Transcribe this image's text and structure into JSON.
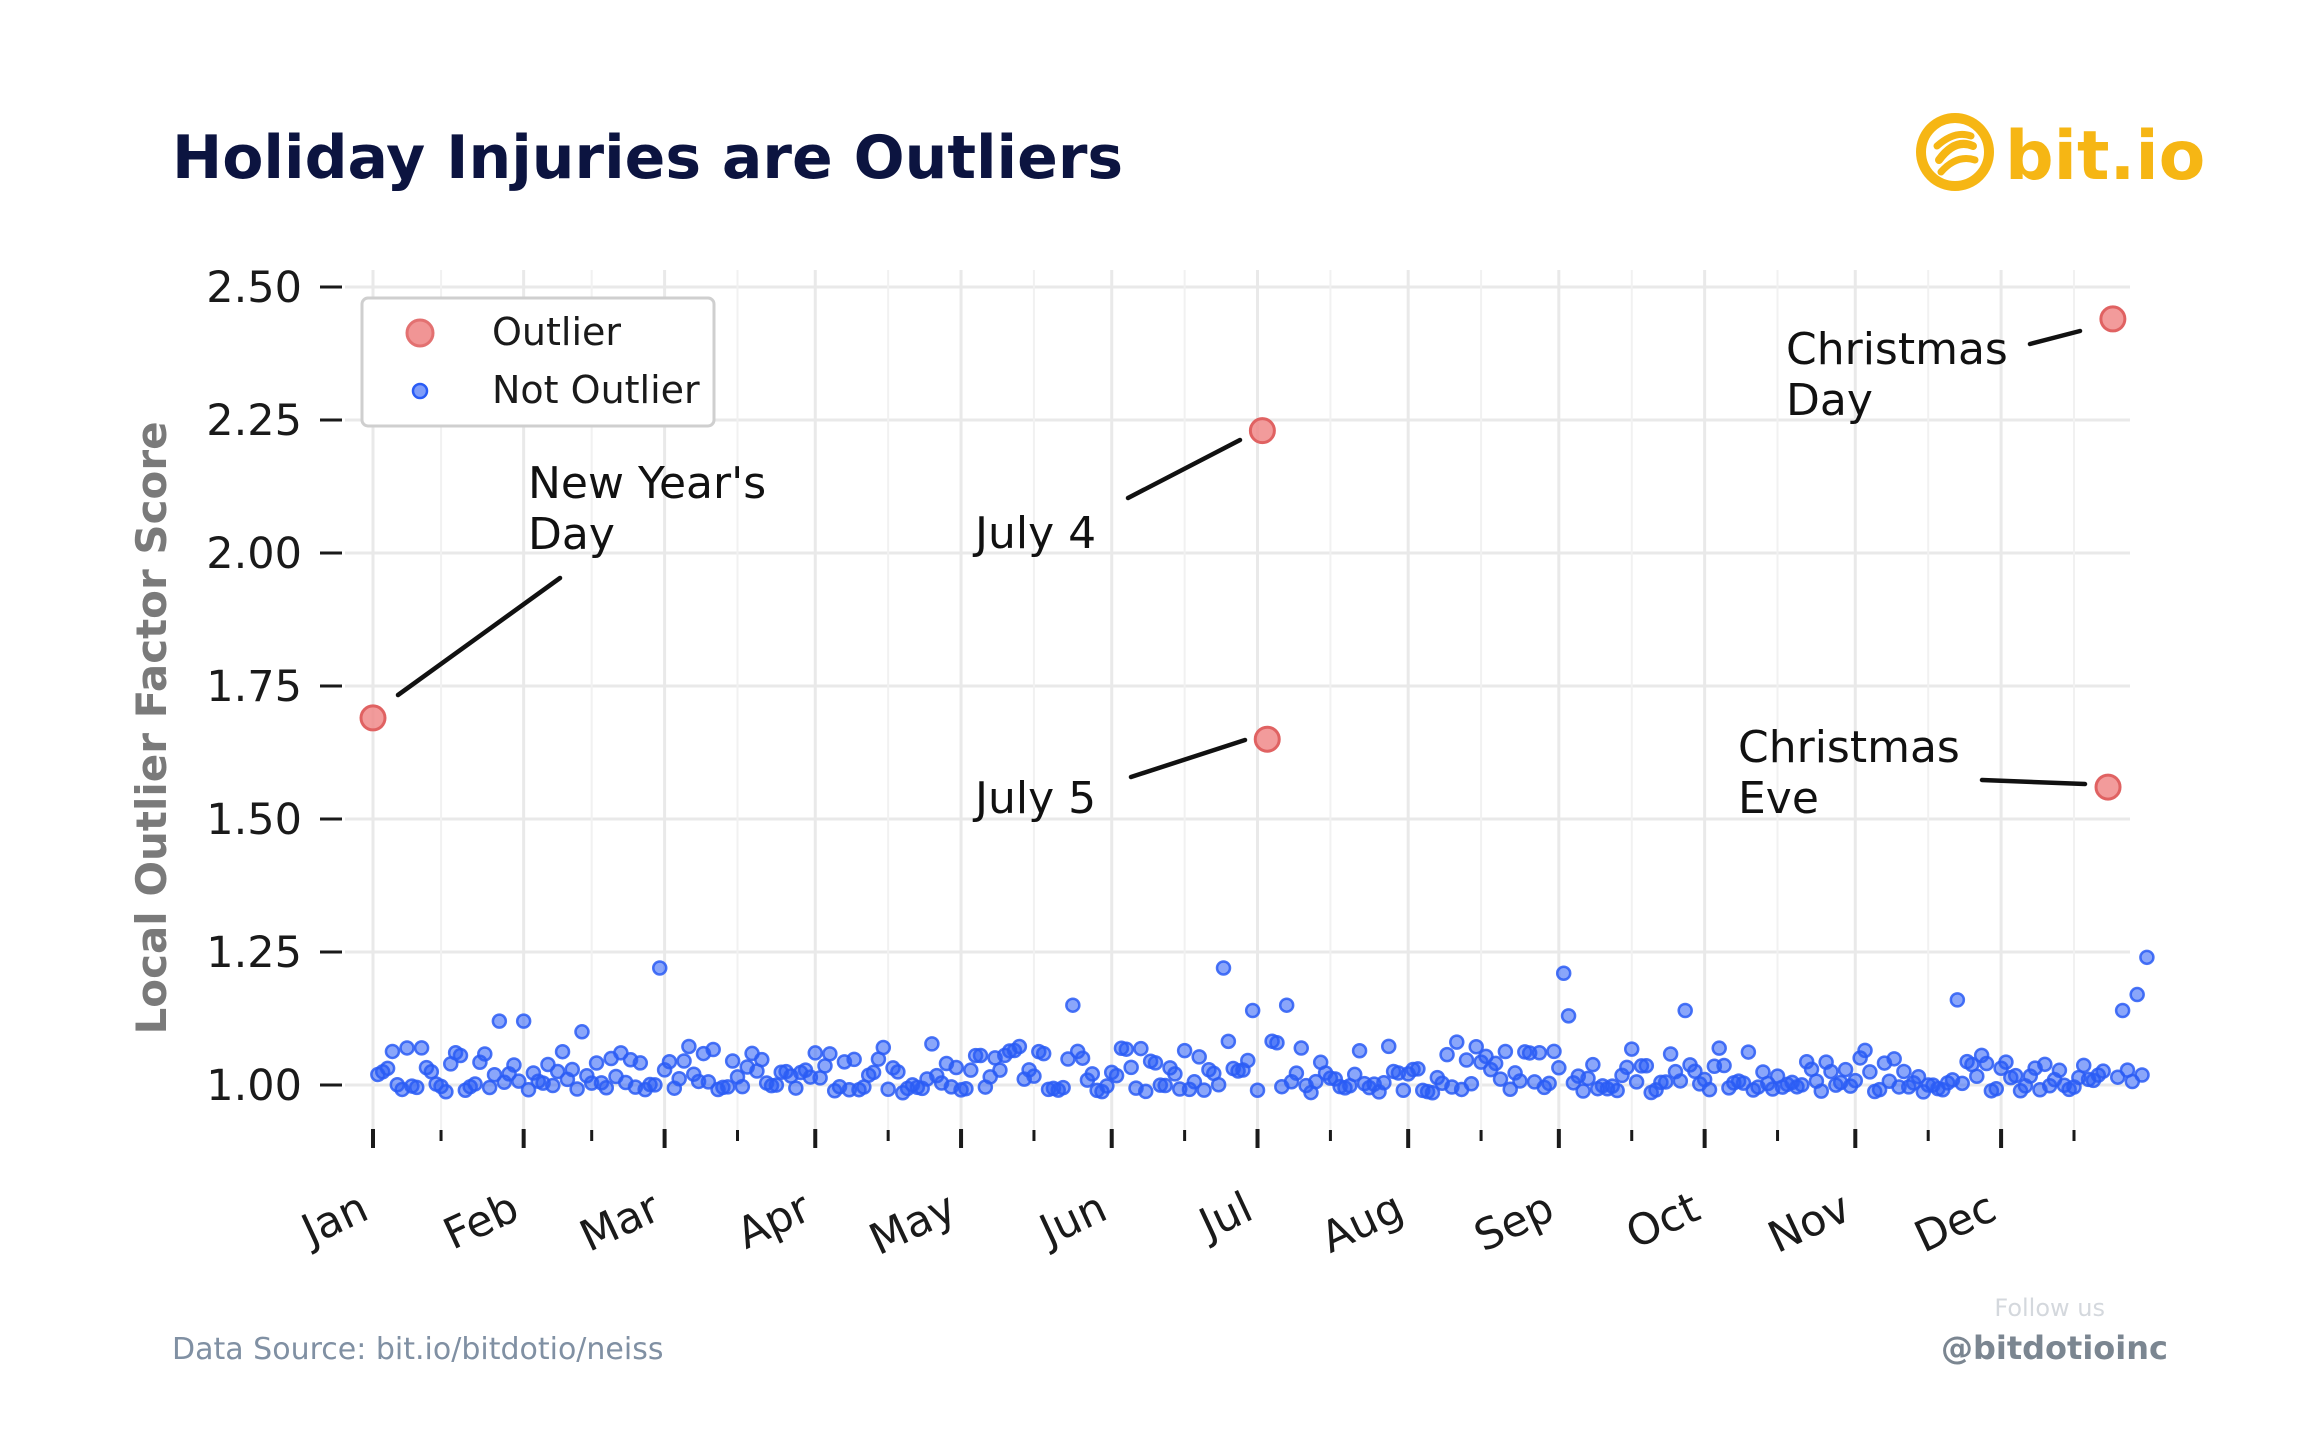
{
  "header": {
    "title": "Holiday Injuries are Outliers"
  },
  "brand": {
    "name": "bit.io",
    "logo_icon": "bitio-logo-icon",
    "color": "#f6b614"
  },
  "footer": {
    "source": "Data Source: bit.io/bitdotio/neiss",
    "follow": "Follow us",
    "handle": "@bitdotioinc"
  },
  "colors": {
    "outlier_fill": "#f08a8a",
    "outlier_edge": "#e06262",
    "inlier": "#2a5cf5",
    "grid": "#e9e9e9"
  },
  "chart_data": {
    "type": "scatter",
    "title": "Holiday Injuries are Outliers",
    "xlabel": "",
    "ylabel": "Local Outlier Factor Score",
    "ylim": [
      0.9,
      2.55
    ],
    "xlim": [
      0,
      366
    ],
    "y_ticks": [
      1.0,
      1.25,
      1.5,
      1.75,
      2.0,
      2.25,
      2.5
    ],
    "y_tick_labels": [
      "1.00",
      "1.25",
      "1.50",
      "1.75",
      "2.00",
      "2.25",
      "2.50"
    ],
    "months": [
      {
        "label": "Jan",
        "day": 1
      },
      {
        "label": "Feb",
        "day": 32
      },
      {
        "label": "Mar",
        "day": 61
      },
      {
        "label": "Apr",
        "day": 92
      },
      {
        "label": "May",
        "day": 122
      },
      {
        "label": "Jun",
        "day": 153
      },
      {
        "label": "Jul",
        "day": 183
      },
      {
        "label": "Aug",
        "day": 214
      },
      {
        "label": "Sep",
        "day": 245
      },
      {
        "label": "Oct",
        "day": 275
      },
      {
        "label": "Nov",
        "day": 306
      },
      {
        "label": "Dec",
        "day": 336
      }
    ],
    "minor_tick_days": [
      15,
      46,
      76,
      107,
      137,
      168,
      198,
      229,
      260,
      290,
      321,
      351
    ],
    "grid": true,
    "legend": {
      "position": "top-left",
      "entries": [
        "Outlier",
        "Not Outlier"
      ]
    },
    "series": [
      {
        "name": "Outlier",
        "points": [
          {
            "day": 1,
            "y": 1.69,
            "label": "New Year's Day"
          },
          {
            "day": 184,
            "y": 2.23,
            "label": "July 4"
          },
          {
            "day": 185,
            "y": 1.65,
            "label": "July 5"
          },
          {
            "day": 358,
            "y": 1.56,
            "label": "Christmas Eve"
          },
          {
            "day": 359,
            "y": 2.44,
            "label": "Christmas Day"
          }
        ]
      },
      {
        "name": "Not Outlier",
        "note": "about 360 daily scores, mostly between 0.98 and 1.10; notable highs listed",
        "highlights": [
          {
            "day": 27,
            "y": 1.12
          },
          {
            "day": 32,
            "y": 1.12
          },
          {
            "day": 44,
            "y": 1.1
          },
          {
            "day": 60,
            "y": 1.22
          },
          {
            "day": 145,
            "y": 1.15
          },
          {
            "day": 176,
            "y": 1.22
          },
          {
            "day": 182,
            "y": 1.14
          },
          {
            "day": 189,
            "y": 1.15
          },
          {
            "day": 246,
            "y": 1.21
          },
          {
            "day": 247,
            "y": 1.13
          },
          {
            "day": 271,
            "y": 1.14
          },
          {
            "day": 327,
            "y": 1.16
          },
          {
            "day": 361,
            "y": 1.14
          },
          {
            "day": 364,
            "y": 1.17
          },
          {
            "day": 366,
            "y": 1.24
          }
        ]
      }
    ],
    "annotations": [
      {
        "lines": [
          "New Year's",
          "Day"
        ],
        "anchor": "upper-right of point"
      },
      {
        "lines": [
          "July 4"
        ],
        "anchor": "lower-left of point"
      },
      {
        "lines": [
          "July 5"
        ],
        "anchor": "lower-left of point"
      },
      {
        "lines": [
          "Christmas",
          "Day"
        ],
        "anchor": "lower-left of point"
      },
      {
        "lines": [
          "Christmas",
          "Eve"
        ],
        "anchor": "left of point"
      }
    ]
  }
}
